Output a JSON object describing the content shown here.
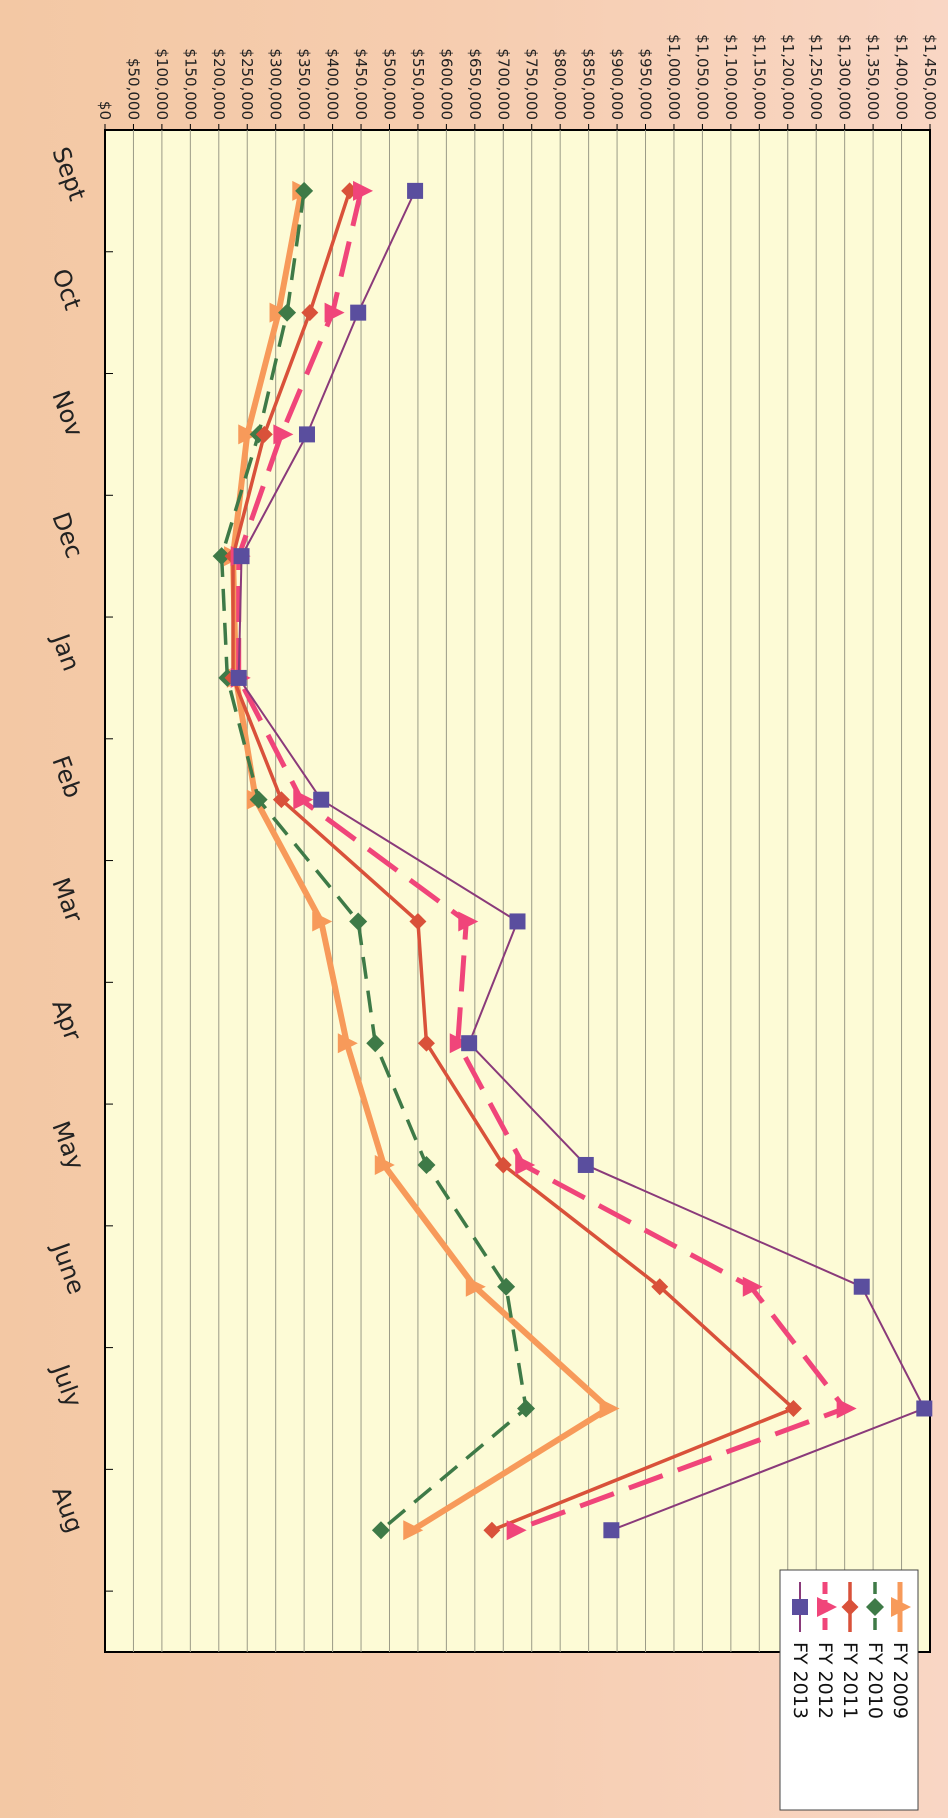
{
  "chart_data": {
    "type": "line",
    "categories": [
      "Sept",
      "Oct",
      "Nov",
      "Dec",
      "Jan",
      "Feb",
      "Mar",
      "Apr",
      "May",
      "June",
      "July",
      "Aug"
    ],
    "ylim": [
      0,
      1450000
    ],
    "yticks": [
      "$0",
      "$50,000",
      "$100,000",
      "$150,000",
      "$200,000",
      "$250,000",
      "$300,000",
      "$350,000",
      "$400,000",
      "$450,000",
      "$500,000",
      "$550,000",
      "$600,000",
      "$650,000",
      "$700,000",
      "$750,000",
      "$800,000",
      "$850,000",
      "$900,000",
      "$950,000",
      "$1,000,000",
      "$1,050,000",
      "$1,100,000",
      "$1,150,000",
      "$1,200,000",
      "$1,250,000",
      "$1,300,000",
      "$1,350,000",
      "$1,400,000",
      "$1,450,000"
    ],
    "grid": true,
    "legend_position": "bottom-right",
    "series": [
      {
        "name": "FY 2009",
        "color": "#f79a5a",
        "values": [
          345000,
          305000,
          250000,
          225000,
          230000,
          265000,
          380000,
          425000,
          490000,
          650000,
          885000,
          540000
        ]
      },
      {
        "name": "FY 2010",
        "color": "#3e7a47",
        "values": [
          350000,
          320000,
          270000,
          205000,
          215000,
          270000,
          445000,
          475000,
          565000,
          705000,
          740000,
          485000
        ]
      },
      {
        "name": "FY 2011",
        "color": "#d9513a",
        "values": [
          430000,
          360000,
          280000,
          225000,
          225000,
          310000,
          550000,
          565000,
          700000,
          975000,
          1210000,
          680000
        ]
      },
      {
        "name": "FY 2012",
        "color": "#f0457a",
        "values": [
          450000,
          400000,
          310000,
          235000,
          235000,
          345000,
          635000,
          620000,
          735000,
          1135000,
          1300000,
          720000
        ]
      },
      {
        "name": "FY 2013",
        "color": "#8a3a7a",
        "values": [
          545000,
          445000,
          355000,
          240000,
          235000,
          380000,
          725000,
          640000,
          845000,
          1330000,
          1440000,
          890000
        ]
      }
    ]
  }
}
